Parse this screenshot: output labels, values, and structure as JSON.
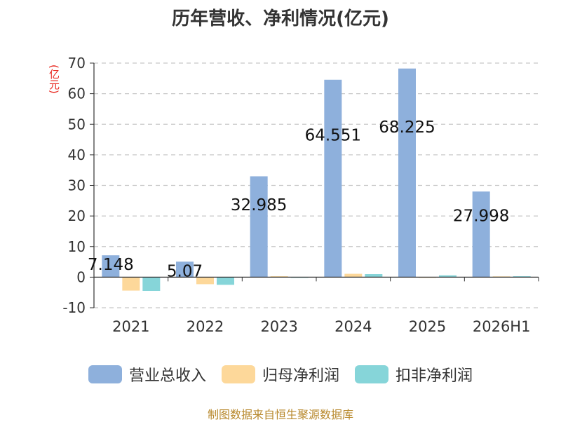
{
  "chart_data": {
    "type": "bar",
    "title": "历年营收、净利情况(亿元)",
    "unit_label": "(亿元)",
    "categories": [
      "2021",
      "2022",
      "2023",
      "2024",
      "2025",
      "2026H1"
    ],
    "ylim": [
      -10,
      70
    ],
    "yticks": [
      -10,
      0,
      10,
      20,
      30,
      40,
      50,
      60,
      70
    ],
    "grid": true,
    "legend_position": "bottom",
    "series": [
      {
        "name": "营业总收入",
        "color": "#8eb0dc",
        "values": [
          7.148,
          5.07,
          32.985,
          64.551,
          68.225,
          27.998
        ],
        "labels": [
          "7.148",
          "5.07",
          "32.985",
          "64.551",
          "68.225",
          "27.998"
        ]
      },
      {
        "name": "归母净利润",
        "color": "#fdd89a",
        "values": [
          -4.4,
          -2.3,
          0.3,
          1.1,
          -0.2,
          0.25
        ]
      },
      {
        "name": "扣非净利润",
        "color": "#86d5d9",
        "values": [
          -4.5,
          -2.5,
          -0.2,
          1.0,
          0.6,
          0.3
        ]
      }
    ]
  },
  "source_text": "制图数据来自恒生聚源数据库"
}
